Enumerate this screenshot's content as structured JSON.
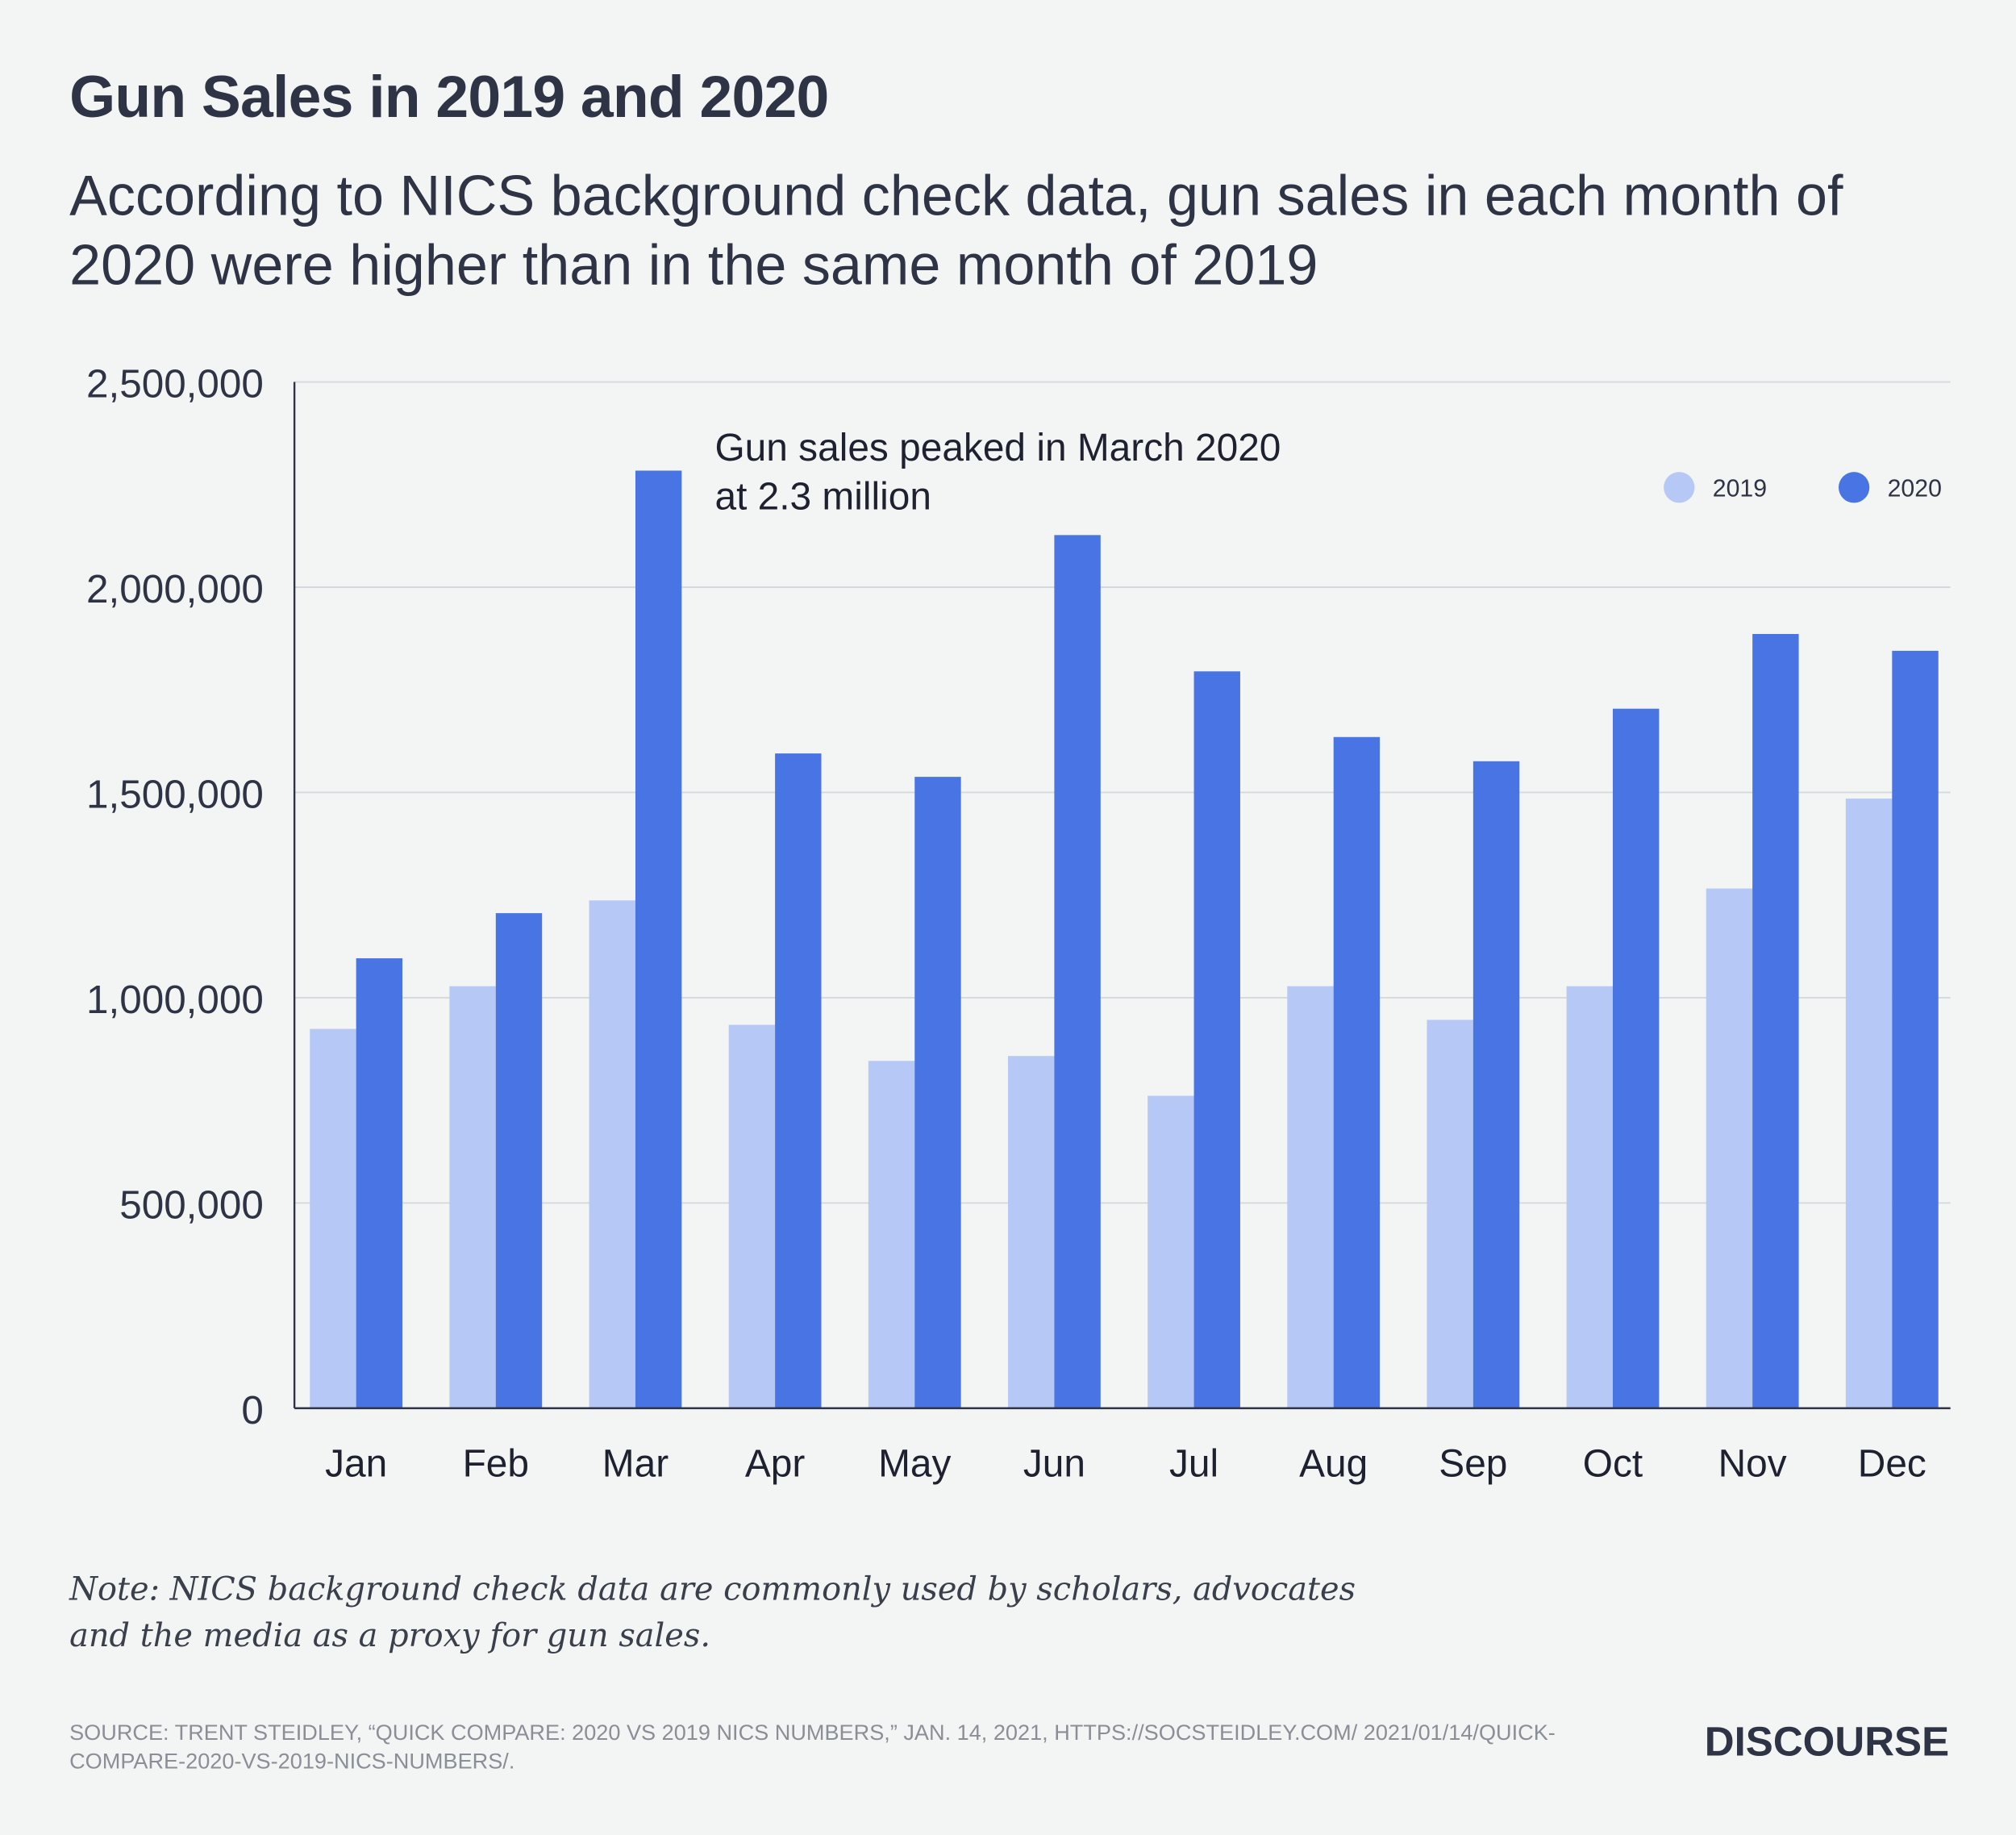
{
  "title": "Gun Sales in 2019 and 2020",
  "subtitle": "According to NICS background check data, gun sales in each month of 2020 were higher than in the same month of 2019",
  "note": "Note: NICS background check data are commonly used by scholars, advocates and the media as a proxy for gun sales.",
  "source": "SOURCE: TRENT STEIDLEY, “QUICK COMPARE: 2020 VS 2019 NICS NUMBERS,” JAN. 14, 2021, HTTPS://SOCSTEIDLEY.COM/ 2021/01/14/QUICK-COMPARE-2020-VS-2019-NICS-NUMBERS/.",
  "logo": "DISCOURSE",
  "chart_data": {
    "type": "bar",
    "categories": [
      "Jan",
      "Feb",
      "Mar",
      "Apr",
      "May",
      "Jun",
      "Jul",
      "Aug",
      "Sep",
      "Oct",
      "Nov",
      "Dec"
    ],
    "series": [
      {
        "name": "2019",
        "color": "#b6c8f5",
        "values": [
          924000,
          1028000,
          1237000,
          934000,
          846000,
          858000,
          761000,
          1028000,
          946000,
          1028000,
          1266000,
          1485000
        ]
      },
      {
        "name": "2020",
        "color": "#4874e4",
        "values": [
          1096000,
          1206000,
          2284000,
          1595000,
          1538000,
          2127000,
          1795000,
          1635000,
          1576000,
          1704000,
          1886000,
          1845000
        ]
      }
    ],
    "ylim": [
      0,
      2500000
    ],
    "yticks": [
      0,
      500000,
      1000000,
      1500000,
      2000000,
      2500000
    ],
    "ytick_labels": [
      "0",
      "500,000",
      "1,000,000",
      "1,500,000",
      "2,000,000",
      "2,500,000"
    ],
    "grid": true,
    "legend": "top-right",
    "annotation": [
      "Gun sales peaked in March 2020",
      "at 2.3 million"
    ]
  }
}
